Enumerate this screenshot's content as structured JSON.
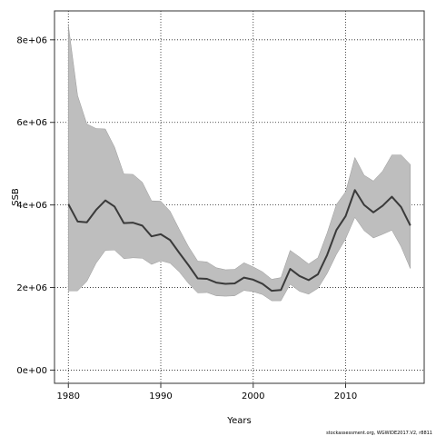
{
  "chart_data": {
    "type": "line",
    "title": "",
    "xlabel": "Years",
    "ylabel": "SSB",
    "xlim": [
      1978.5,
      2018.5
    ],
    "ylim": [
      -320000,
      8700000
    ],
    "x_ticks": [
      1980,
      1990,
      2000,
      2010
    ],
    "y_ticks": [
      0,
      2000000,
      4000000,
      6000000,
      8000000
    ],
    "x_tick_labels": [
      "1980",
      "1990",
      "2000",
      "2010"
    ],
    "y_tick_labels": [
      "0e+00",
      "2e+06",
      "4e+06",
      "6e+06",
      "8e+06"
    ],
    "grid": true,
    "grid_style": "dotted",
    "legend": "none",
    "credit": "stockassessment.org, WGWIDE2017.V2, r8811",
    "colors": {
      "line": "#3a3a3a",
      "band": "#bebebe",
      "band_edge": "#999999",
      "grid": "#222222",
      "frame": "#333333"
    },
    "series": [
      {
        "kind": "estimate",
        "x": [
          1980,
          1981,
          1982,
          1983,
          1984,
          1985,
          1986,
          1987,
          1988,
          1989,
          1990,
          1991,
          1992,
          1993,
          1994,
          1995,
          1996,
          1997,
          1998,
          1999,
          2000,
          2001,
          2002,
          2003,
          2004,
          2005,
          2006,
          2007,
          2008,
          2009,
          2010,
          2011,
          2012,
          2013,
          2014,
          2015,
          2016,
          2017
        ],
        "values": [
          4020000,
          3600000,
          3580000,
          3880000,
          4110000,
          3960000,
          3560000,
          3570000,
          3500000,
          3240000,
          3290000,
          3150000,
          2840000,
          2540000,
          2220000,
          2210000,
          2120000,
          2090000,
          2100000,
          2240000,
          2190000,
          2090000,
          1920000,
          1940000,
          2450000,
          2280000,
          2180000,
          2320000,
          2790000,
          3390000,
          3730000,
          4360000,
          4000000,
          3820000,
          3980000,
          4200000,
          3950000,
          3500000
        ]
      },
      {
        "kind": "upper-bound",
        "x": [
          1980,
          1981,
          1982,
          1983,
          1984,
          1985,
          1986,
          1987,
          1988,
          1989,
          1990,
          1991,
          1992,
          1993,
          1994,
          1995,
          1996,
          1997,
          1998,
          1999,
          2000,
          2001,
          2002,
          2003,
          2004,
          2005,
          2006,
          2007,
          2008,
          2009,
          2010,
          2011,
          2012,
          2013,
          2014,
          2015,
          2016,
          2017
        ],
        "values": [
          8350000,
          6650000,
          5960000,
          5850000,
          5840000,
          5400000,
          4750000,
          4740000,
          4550000,
          4100000,
          4090000,
          3850000,
          3410000,
          2990000,
          2640000,
          2620000,
          2480000,
          2430000,
          2440000,
          2600000,
          2500000,
          2380000,
          2200000,
          2240000,
          2900000,
          2740000,
          2570000,
          2720000,
          3320000,
          4010000,
          4320000,
          5150000,
          4720000,
          4580000,
          4820000,
          5210000,
          5210000,
          4980000
        ]
      },
      {
        "kind": "lower-bound",
        "x": [
          1980,
          1981,
          1982,
          1983,
          1984,
          1985,
          1986,
          1987,
          1988,
          1989,
          1990,
          1991,
          1992,
          1993,
          1994,
          1995,
          1996,
          1997,
          1998,
          1999,
          2000,
          2001,
          2002,
          2003,
          2004,
          2005,
          2006,
          2007,
          2008,
          2009,
          2010,
          2011,
          2012,
          2013,
          2014,
          2015,
          2016,
          2017
        ],
        "values": [
          1920000,
          1920000,
          2150000,
          2590000,
          2900000,
          2910000,
          2700000,
          2720000,
          2710000,
          2560000,
          2650000,
          2590000,
          2380000,
          2100000,
          1870000,
          1880000,
          1800000,
          1790000,
          1800000,
          1930000,
          1900000,
          1830000,
          1680000,
          1680000,
          2080000,
          1910000,
          1840000,
          1980000,
          2340000,
          2800000,
          3180000,
          3700000,
          3380000,
          3200000,
          3290000,
          3390000,
          2990000,
          2460000
        ]
      }
    ]
  }
}
